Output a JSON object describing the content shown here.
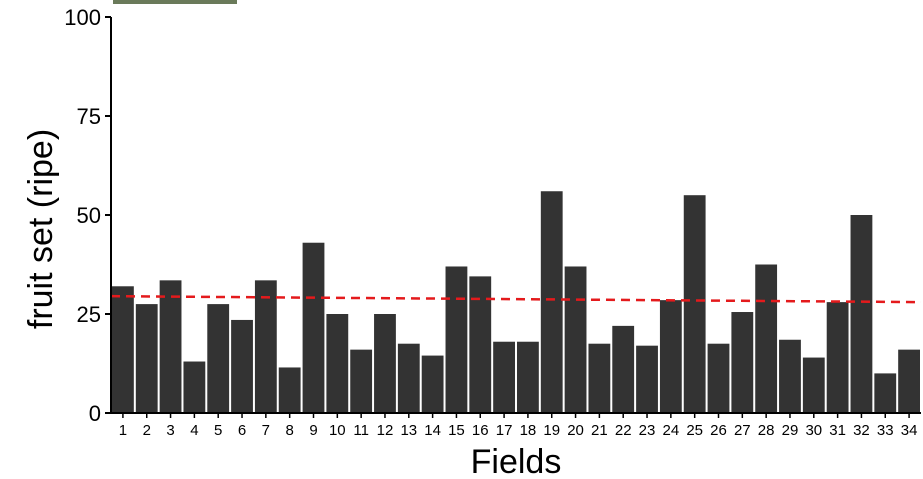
{
  "chart_data": {
    "type": "bar",
    "title": "",
    "xlabel": "Fields",
    "ylabel": "fruit set (ripe)",
    "ylim": [
      0,
      100
    ],
    "yticks": [
      0,
      25,
      50,
      75,
      100
    ],
    "categories": [
      "1",
      "2",
      "3",
      "4",
      "5",
      "6",
      "7",
      "8",
      "9",
      "10",
      "11",
      "12",
      "13",
      "14",
      "15",
      "16",
      "17",
      "18",
      "19",
      "20",
      "21",
      "22",
      "23",
      "24",
      "25",
      "26",
      "27",
      "28",
      "29",
      "30",
      "31",
      "32",
      "33",
      "34"
    ],
    "values": [
      32,
      27.5,
      33.5,
      13,
      27.5,
      23.5,
      33.5,
      11.5,
      43,
      25,
      16,
      25,
      17.5,
      14.5,
      37,
      34.5,
      18,
      18,
      56,
      37,
      17.5,
      22,
      17,
      28.5,
      55,
      17.5,
      25.5,
      37.5,
      18.5,
      14,
      28,
      50,
      10,
      16
    ],
    "trend_line": {
      "style": "dashed",
      "color": "#e41a1c",
      "start": 29.5,
      "end": 28
    },
    "bar_color": "#333333",
    "grid": false
  }
}
